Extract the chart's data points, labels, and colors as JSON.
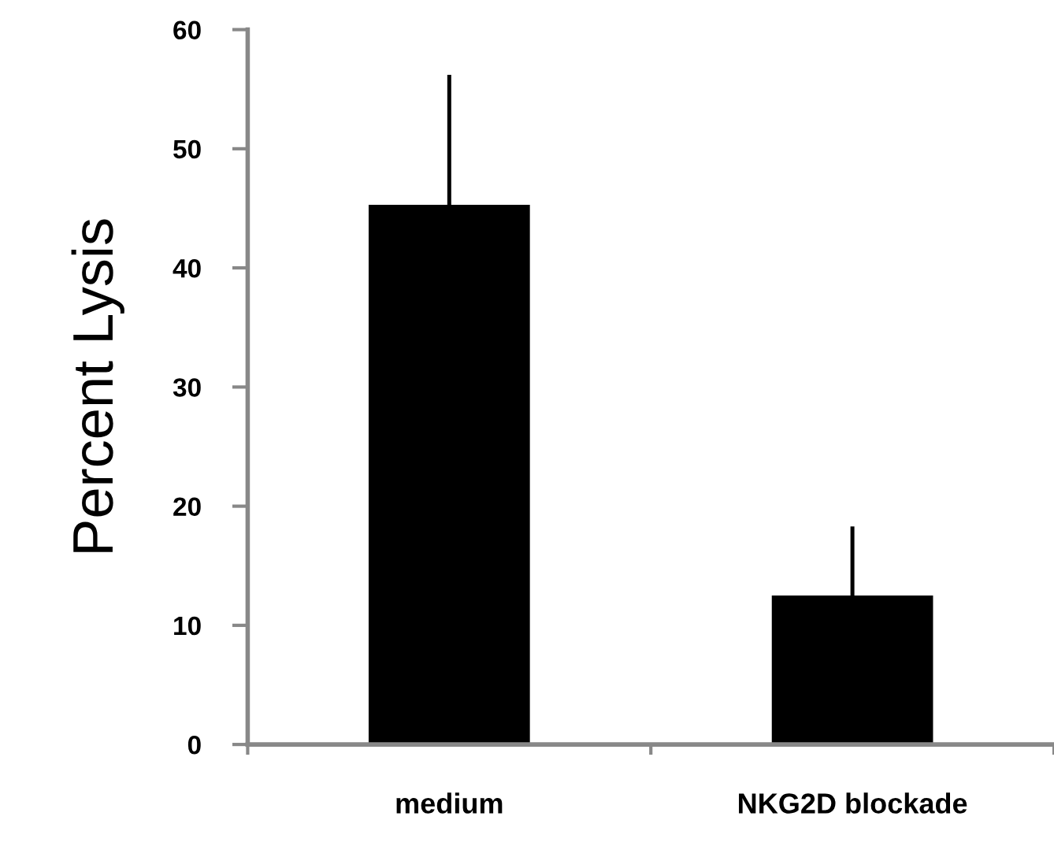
{
  "chart_data": {
    "type": "bar",
    "ylabel": "Percent Lysis",
    "categories": [
      "medium",
      "NKG2D blockade"
    ],
    "values": [
      45.3,
      12.5
    ],
    "errors": [
      [
        45.3,
        56.2
      ],
      [
        12.5,
        18.3
      ]
    ],
    "color": "#000000",
    "ylim": [
      0,
      60
    ],
    "yticks": [
      0,
      10,
      20,
      30,
      40,
      50,
      60
    ],
    "grid": false,
    "legend": false
  }
}
